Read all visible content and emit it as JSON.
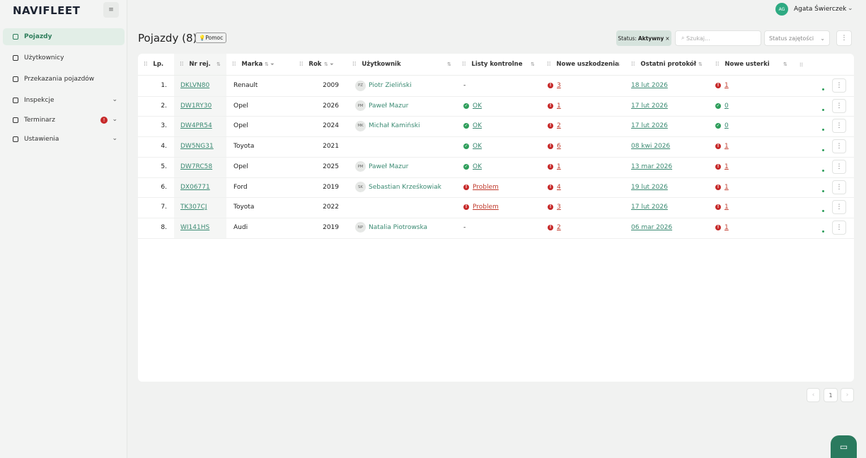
{
  "sidebar": {
    "logo": "NAVIFLEET",
    "nav": [
      {
        "label": "Pojazdy"
      },
      {
        "label": "Użytkownicy"
      },
      {
        "label": "Przekazania pojazdów"
      },
      {
        "label": "Inspekcje"
      },
      {
        "label": "Terminarz"
      },
      {
        "label": "Ustawienia"
      }
    ]
  },
  "header": {
    "user_initials": "AG",
    "user_name": "Agata Świerczek"
  },
  "toolbar": {
    "title": "Pojazdy (8)",
    "help": "Pomoc",
    "filter_label": "Status:",
    "filter_value": "Aktywny",
    "search_placeholder": "Szukaj...",
    "status_select": "Status zajętości"
  },
  "table": {
    "columns": [
      "Lp.",
      "Nr rej.",
      "Marka",
      "Rok",
      "Użytkownik",
      "Listy kontrolne",
      "Nowe uszkodzenia",
      "Ostatni protokół",
      "Nowe usterki"
    ],
    "rows": [
      {
        "lp": "1.",
        "plate": "DKLVN80",
        "make": "Renault",
        "year": 2009,
        "user": {
          "initials": "PZ",
          "name": "Piotr Zieliński"
        },
        "checklist": "-",
        "damages": 3,
        "last_protocol": "18 lut 2026",
        "defects": 1
      },
      {
        "lp": "2.",
        "plate": "DW1RY30",
        "make": "Opel",
        "year": 2026,
        "user": {
          "initials": "PM",
          "name": "Paweł Mazur"
        },
        "checklist": "OK",
        "damages": 1,
        "last_protocol": "17 lut 2026",
        "defects": 0
      },
      {
        "lp": "3.",
        "plate": "DW4PR54",
        "make": "Opel",
        "year": 2024,
        "user": {
          "initials": "MK",
          "name": "Michał Kamiński"
        },
        "checklist": "OK",
        "damages": 2,
        "last_protocol": "17 lut 2026",
        "defects": 0
      },
      {
        "lp": "4.",
        "plate": "DW5NG31",
        "make": "Toyota",
        "year": 2021,
        "user": null,
        "checklist": "OK",
        "damages": 6,
        "last_protocol": "08 kwi 2026",
        "defects": 1
      },
      {
        "lp": "5.",
        "plate": "DW7RC58",
        "make": "Opel",
        "year": 2025,
        "user": {
          "initials": "PM",
          "name": "Paweł Mazur"
        },
        "checklist": "OK",
        "damages": 1,
        "last_protocol": "13 mar 2026",
        "defects": 1
      },
      {
        "lp": "6.",
        "plate": "DX06771",
        "make": "Ford",
        "year": 2019,
        "user": {
          "initials": "SK",
          "name": "Sebastian Krześkowiak"
        },
        "checklist": "Problem",
        "damages": 4,
        "last_protocol": "19 lut 2026",
        "defects": 1
      },
      {
        "lp": "7.",
        "plate": "TK307CJ",
        "make": "Toyota",
        "year": 2022,
        "user": null,
        "checklist": "Problem",
        "damages": 3,
        "last_protocol": "17 lut 2026",
        "defects": 1
      },
      {
        "lp": "8.",
        "plate": "WI141HS",
        "make": "Audi",
        "year": 2019,
        "user": {
          "initials": "NP",
          "name": "Natalia Piotrowska"
        },
        "checklist": "-",
        "damages": 2,
        "last_protocol": "06 mar 2026",
        "defects": 1
      }
    ]
  },
  "pagination": {
    "current": 1
  }
}
